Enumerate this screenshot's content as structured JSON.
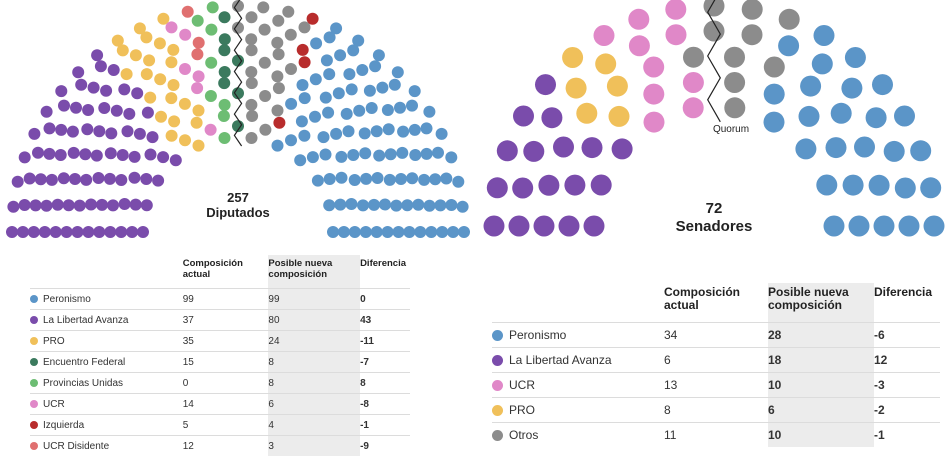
{
  "colors": {
    "Peronismo": "#5b95c8",
    "La Libertad Avanza": "#7a4cab",
    "PRO": "#f0c05a",
    "Encuentro Federal": "#3b7a5e",
    "Provincias Unidas": "#6dbd73",
    "UCR": "#e088c8",
    "Izquierda": "#b82c2c",
    "UCR Disidente": "#e07070",
    "Otros": "#8c8c8c"
  },
  "chart_data": [
    {
      "type": "table",
      "title": "257 Diputados",
      "total_value": "257",
      "total_label": "Diputados",
      "columns": [
        "",
        "Composición actual",
        "Posible nueva composición",
        "Diferencia"
      ],
      "rows": [
        {
          "party": "Peronismo",
          "actual": "99",
          "nueva": "99",
          "diferencia": "0"
        },
        {
          "party": "La Libertad Avanza",
          "actual": "37",
          "nueva": "80",
          "diferencia": "43"
        },
        {
          "party": "PRO",
          "actual": "35",
          "nueva": "24",
          "diferencia": "-11"
        },
        {
          "party": "Encuentro Federal",
          "actual": "15",
          "nueva": "8",
          "diferencia": "-7"
        },
        {
          "party": "Provincias Unidas",
          "actual": "0",
          "nueva": "8",
          "diferencia": "8"
        },
        {
          "party": "UCR",
          "actual": "14",
          "nueva": "6",
          "diferencia": "-8"
        },
        {
          "party": "Izquierda",
          "actual": "5",
          "nueva": "4",
          "diferencia": "-1"
        },
        {
          "party": "UCR Disidente",
          "actual": "12",
          "nueva": "3",
          "diferencia": "-9"
        }
      ],
      "hemicycle_order": [
        "La Libertad Avanza",
        "PRO",
        "UCR",
        "UCR Disidente",
        "Provincias Unidas",
        "Encuentro Federal",
        "Otros",
        "Izquierda",
        "Peronismo"
      ],
      "seats_shown": {
        "La Libertad Avanza": 80,
        "PRO": 24,
        "UCR": 6,
        "UCR Disidente": 3,
        "Provincias Unidas": 8,
        "Encuentro Federal": 8,
        "Otros": 25,
        "Izquierda": 4,
        "Peronismo": 99
      }
    },
    {
      "type": "table",
      "title": "72 Senadores",
      "total_value": "72",
      "total_label": "Senadores",
      "quorum_label": "Quorum",
      "columns": [
        "",
        "Composición actual",
        "Posible nueva composición",
        "Diferencia"
      ],
      "rows": [
        {
          "party": "Peronismo",
          "actual": "34",
          "nueva": "28",
          "diferencia": "-6"
        },
        {
          "party": "La Libertad Avanza",
          "actual": "6",
          "nueva": "18",
          "diferencia": "12"
        },
        {
          "party": "UCR",
          "actual": "13",
          "nueva": "10",
          "diferencia": "-3"
        },
        {
          "party": "PRO",
          "actual": "8",
          "nueva": "6",
          "diferencia": "-2"
        },
        {
          "party": "Otros",
          "actual": "11",
          "nueva": "10",
          "diferencia": "-1"
        }
      ],
      "hemicycle_order": [
        "La Libertad Avanza",
        "PRO",
        "UCR",
        "Otros",
        "Peronismo"
      ],
      "seats_shown": {
        "La Libertad Avanza": 18,
        "PRO": 6,
        "UCR": 10,
        "Otros": 10,
        "Peronismo": 28
      }
    }
  ]
}
